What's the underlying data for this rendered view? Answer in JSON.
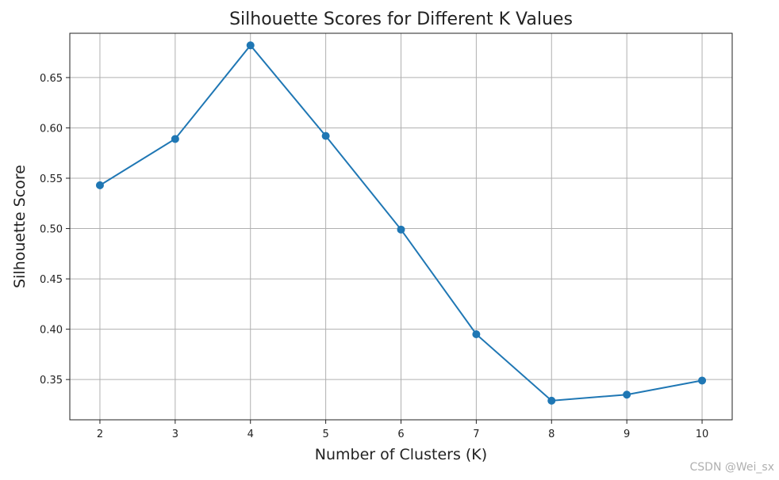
{
  "watermark": "CSDN @Wei_sx",
  "chart_data": {
    "type": "line",
    "title": "Silhouette Scores for Different K Values",
    "xlabel": "Number of Clusters (K)",
    "ylabel": "Silhouette Score",
    "x": [
      2,
      3,
      4,
      5,
      6,
      7,
      8,
      9,
      10
    ],
    "series": [
      {
        "values": [
          0.543,
          0.589,
          0.682,
          0.592,
          0.499,
          0.395,
          0.329,
          0.335,
          0.349
        ],
        "color": "#1f77b4"
      }
    ],
    "xlim": [
      1.6,
      10.4
    ],
    "ylim": [
      0.31,
      0.694
    ],
    "xticks": [
      2,
      3,
      4,
      5,
      6,
      7,
      8,
      9,
      10
    ],
    "yticks": [
      0.35,
      0.4,
      0.45,
      0.5,
      0.55,
      0.6,
      0.65
    ],
    "ytick_labels": [
      "0.35",
      "0.40",
      "0.45",
      "0.50",
      "0.55",
      "0.60",
      "0.65"
    ],
    "grid": true,
    "marker": "circle"
  }
}
